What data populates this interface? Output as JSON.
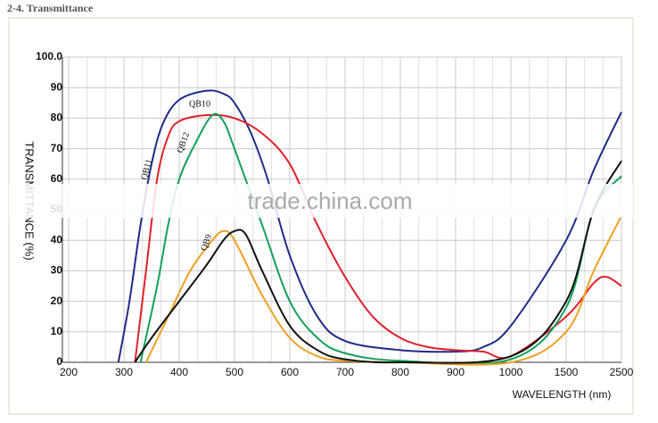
{
  "title": "2-4. Transmittance",
  "chart_data": {
    "type": "line",
    "x_label": "WAVELENGTH (nm)",
    "y_label": "TRANSMITTANCE (%)",
    "watermark": "trade.china.com",
    "xlim": [
      200,
      2500
    ],
    "xticks": [
      200,
      300,
      400,
      500,
      600,
      700,
      800,
      900,
      1000,
      1500,
      2500
    ],
    "ylim": [
      0,
      100
    ],
    "yticks": [
      0,
      10,
      20,
      30,
      40,
      50,
      60,
      70,
      80,
      90,
      {
        "value": 100,
        "label": "100.0"
      }
    ],
    "grid": true,
    "series": [
      {
        "name": "QB11",
        "color": "#1f2a86",
        "x": [
          290,
          310,
          330,
          350,
          370,
          400,
          450,
          480,
          500,
          530,
          560,
          600,
          650,
          700,
          800,
          900,
          950,
          1000,
          1500,
          2000,
          2500
        ],
        "values": [
          0,
          20,
          45,
          65,
          78,
          86,
          89,
          88,
          85,
          75,
          60,
          35,
          15,
          7,
          4,
          3.5,
          5,
          12,
          40,
          63,
          82
        ]
      },
      {
        "name": "QB10",
        "color": "#e0202a",
        "x": [
          320,
          340,
          360,
          380,
          400,
          450,
          500,
          550,
          600,
          650,
          700,
          750,
          800,
          850,
          900,
          950,
          1000,
          1500,
          2000,
          2230,
          2500
        ],
        "values": [
          0,
          30,
          60,
          74,
          79,
          81,
          80,
          75,
          65,
          45,
          28,
          15,
          8,
          5,
          4,
          3.5,
          2,
          15,
          26,
          28,
          25
        ]
      },
      {
        "name": "QB12",
        "color": "#13a05a",
        "x": [
          330,
          360,
          380,
          400,
          430,
          460,
          480,
          500,
          550,
          600,
          650,
          700,
          800,
          1000,
          1500,
          2000,
          2500
        ],
        "values": [
          0,
          25,
          45,
          60,
          72,
          81,
          79,
          70,
          45,
          20,
          8,
          3,
          0.5,
          1,
          18,
          50,
          61
        ]
      },
      {
        "color": "#f0a020",
        "x": [
          340,
          380,
          420,
          460,
          480,
          500,
          550,
          600,
          650,
          700,
          800,
          1000,
          1500,
          2000,
          2500
        ],
        "values": [
          0,
          15,
          30,
          40,
          43,
          40,
          22,
          8,
          2,
          0.5,
          0,
          0,
          10,
          30,
          48
        ]
      },
      {
        "name": "QB9",
        "color": "#111111",
        "x": [
          320,
          350,
          400,
          450,
          480,
          500,
          520,
          550,
          600,
          650,
          700,
          800,
          1000,
          1500,
          2000,
          2500
        ],
        "values": [
          0,
          8,
          20,
          32,
          40,
          43,
          42,
          30,
          12,
          4,
          1,
          0,
          2,
          20,
          50,
          66
        ]
      }
    ]
  }
}
